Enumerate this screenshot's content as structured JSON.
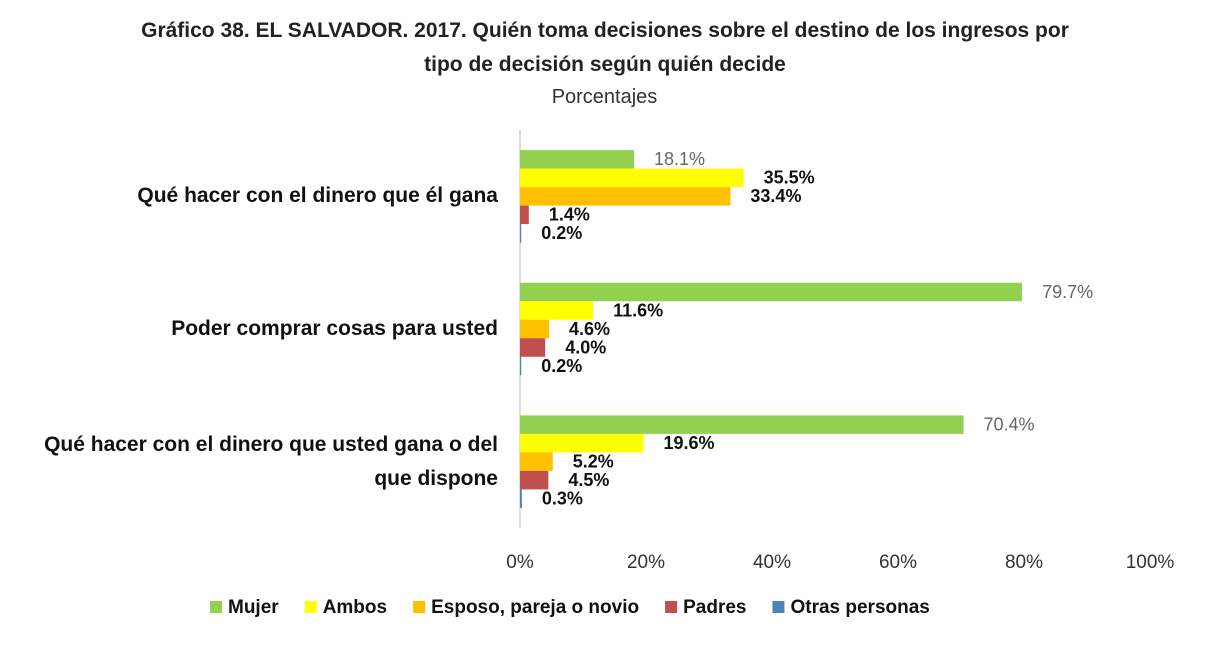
{
  "chart_data": {
    "type": "hbar",
    "title": "Gráfico 38. EL SALVADOR. 2017. Quién toma decisiones sobre el destino de los ingresos por tipo de decisión según quién decide",
    "subtitle": "Porcentajes",
    "categories": [
      "Qué hacer con el dinero que él gana",
      "Poder comprar cosas para usted",
      "Qué hacer con el dinero que usted gana o del que dispone"
    ],
    "series": [
      {
        "name": "Mujer",
        "color": "#92d050",
        "values": [
          18.1,
          79.7,
          70.4
        ],
        "value_labels": [
          "18.1%",
          "79.7%",
          "70.4%"
        ]
      },
      {
        "name": "Ambos",
        "color": "#ffff00",
        "values": [
          35.5,
          11.6,
          19.6
        ],
        "value_labels": [
          "35.5%",
          "11.6%",
          "19.6%"
        ]
      },
      {
        "name": "Esposo, pareja o novio",
        "color": "#ffc000",
        "values": [
          33.4,
          4.6,
          5.2
        ],
        "value_labels": [
          "33.4%",
          "4.6%",
          "5.2%"
        ]
      },
      {
        "name": "Padres",
        "color": "#c0504d",
        "values": [
          1.4,
          4.0,
          4.5
        ],
        "value_labels": [
          "1.4%",
          "4.0%",
          "4.5%"
        ]
      },
      {
        "name": "Otras personas",
        "color": "#4f81bd",
        "values": [
          0.2,
          0.2,
          0.3
        ],
        "value_labels": [
          "0.2%",
          "0.2%",
          "0.3%"
        ]
      }
    ],
    "xlim": [
      0,
      100
    ],
    "xticks": [
      {
        "value": 0,
        "label": "0%"
      },
      {
        "value": 20,
        "label": "20%"
      },
      {
        "value": 40,
        "label": "40%"
      },
      {
        "value": 60,
        "label": "60%"
      },
      {
        "value": 80,
        "label": "80%"
      },
      {
        "value": 100,
        "label": "100%"
      }
    ],
    "grid": false,
    "legend": "bottom"
  }
}
